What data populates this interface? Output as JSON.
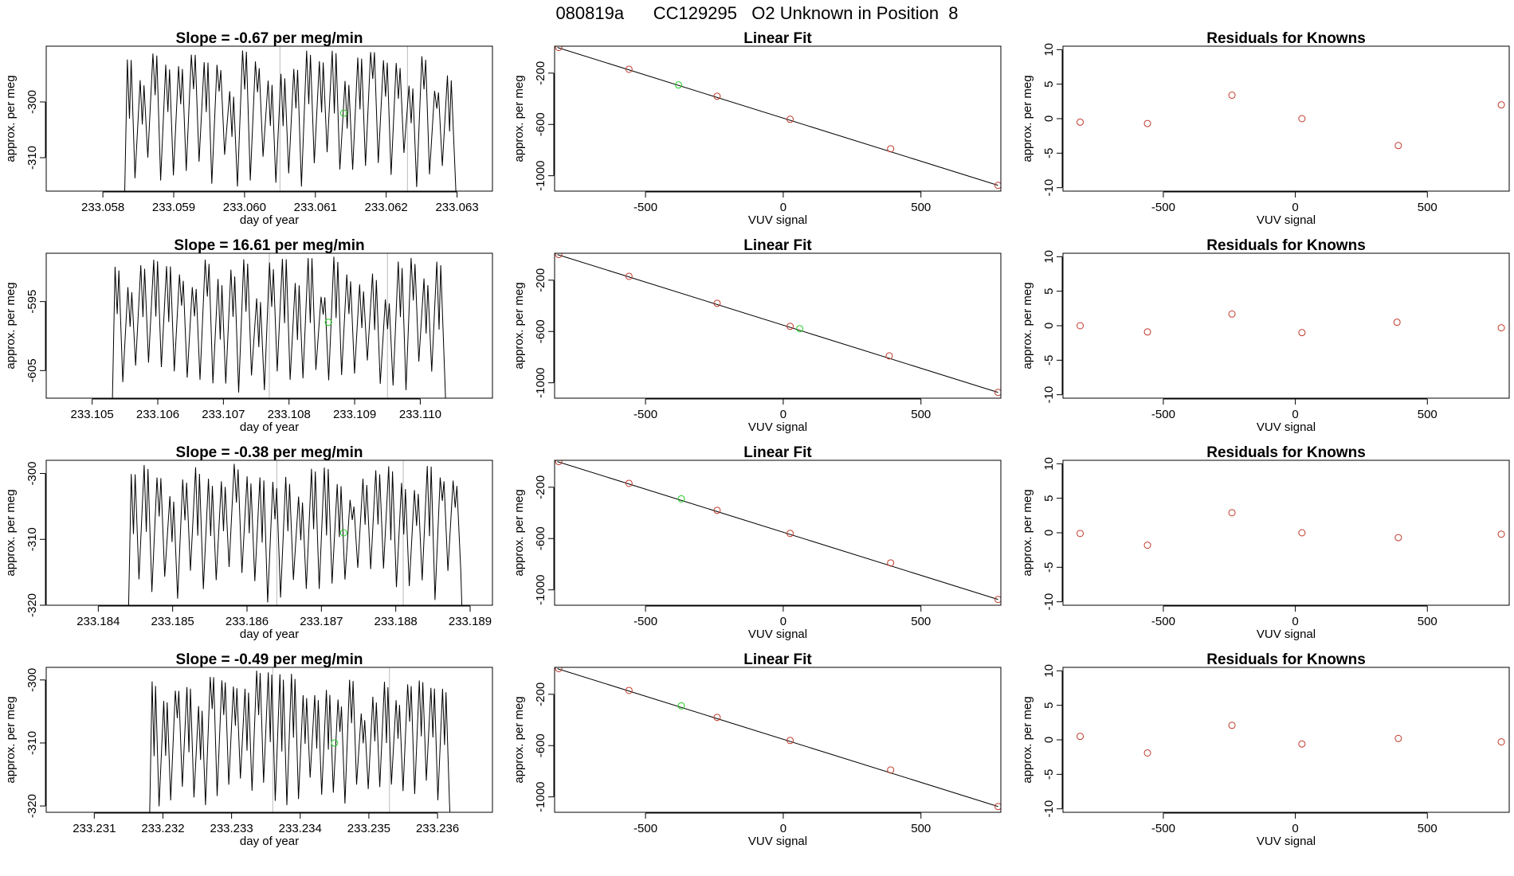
{
  "figure_title": "080819a      CC129295   O2 Unknown in Position  8",
  "colors": {
    "line": "#000000",
    "known_point": "#c0392b",
    "unknown_point": "#22cc22",
    "frame": "#000000",
    "divider": "#bbbbbb"
  },
  "chart_data": [
    {
      "type": "line",
      "panel": "timeseries",
      "row": 1,
      "title": "Slope =  -0.67  per meg/min",
      "xlabel": "day of year",
      "ylabel": "approx. per meg",
      "xlim": [
        233.0572,
        233.0635
      ],
      "ylim": [
        -316,
        -290
      ],
      "xticks": [
        233.058,
        233.059,
        233.06,
        233.061,
        233.062,
        233.063
      ],
      "xtick_labels": [
        "233.058",
        "233.059",
        "233.060",
        "233.061",
        "233.062",
        "233.063"
      ],
      "yticks": [
        -300,
        -310
      ],
      "ytick_labels": [
        "-300",
        "-310"
      ],
      "series_start": 233.0583,
      "series_end": 233.063,
      "seed": 11,
      "dividers": [
        233.0605,
        233.0623
      ],
      "unknown_point": {
        "x": 233.0614,
        "y": -302
      }
    },
    {
      "type": "scatter",
      "panel": "fit",
      "row": 1,
      "title": "Linear Fit",
      "xlabel": "VUV signal",
      "ylabel": "approx. per meg",
      "xlim": [
        -830,
        790
      ],
      "ylim": [
        -1120,
        10
      ],
      "xticks": [
        -500,
        0,
        500
      ],
      "xtick_labels": [
        "-500",
        "0",
        "500"
      ],
      "yticks": [
        -200,
        -600,
        -1000
      ],
      "ytick_labels": [
        "-200",
        "-600",
        "-1000"
      ],
      "line": {
        "x1": -820,
        "y1": 0,
        "x2": 780,
        "y2": -1075
      },
      "known_points": {
        "x": [
          -815,
          -560,
          -240,
          25,
          390,
          780
        ],
        "y": [
          0,
          -170,
          -380,
          -560,
          -790,
          -1075
        ]
      },
      "unknown_point": {
        "x": -380,
        "y": -292
      }
    },
    {
      "type": "scatter",
      "panel": "residuals",
      "row": 1,
      "title": "Residuals for Knowns",
      "xlabel": "VUV signal",
      "ylabel": "approx. per meg",
      "xlim": [
        -880,
        810
      ],
      "ylim": [
        -10.5,
        10.5
      ],
      "xticks": [
        -500,
        0,
        500
      ],
      "xtick_labels": [
        "-500",
        "0",
        "500"
      ],
      "yticks": [
        10,
        5,
        0,
        -5,
        -10
      ],
      "ytick_labels": [
        "10",
        "5",
        "0",
        "-5",
        "-10"
      ],
      "points": {
        "x": [
          -815,
          -560,
          -240,
          25,
          390,
          780
        ],
        "y": [
          -0.5,
          -0.7,
          3.4,
          0.0,
          -3.9,
          2.0
        ]
      }
    },
    {
      "type": "line",
      "panel": "timeseries",
      "row": 2,
      "title": "Slope =  16.61  per meg/min",
      "xlabel": "day of year",
      "ylabel": "approx. per meg",
      "xlim": [
        233.1043,
        233.1111
      ],
      "ylim": [
        -609,
        -588
      ],
      "xticks": [
        233.105,
        233.106,
        233.107,
        233.108,
        233.109,
        233.11
      ],
      "xtick_labels": [
        "233.105",
        "233.106",
        "233.107",
        "233.108",
        "233.109",
        "233.110"
      ],
      "yticks": [
        -595,
        -605
      ],
      "ytick_labels": [
        "-595",
        "-605"
      ],
      "series_start": 233.1053,
      "series_end": 233.1104,
      "seed": 23,
      "dividers": [
        233.1077,
        233.1095
      ],
      "unknown_point": {
        "x": 233.1086,
        "y": -598
      }
    },
    {
      "type": "scatter",
      "panel": "fit",
      "row": 2,
      "title": "Linear Fit",
      "xlabel": "VUV signal",
      "ylabel": "approx. per meg",
      "xlim": [
        -830,
        790
      ],
      "ylim": [
        -1120,
        10
      ],
      "xticks": [
        -500,
        0,
        500
      ],
      "xtick_labels": [
        "-500",
        "0",
        "500"
      ],
      "yticks": [
        -200,
        -600,
        -1000
      ],
      "ytick_labels": [
        "-200",
        "-600",
        "-1000"
      ],
      "line": {
        "x1": -820,
        "y1": 0,
        "x2": 780,
        "y2": -1075
      },
      "known_points": {
        "x": [
          -815,
          -560,
          -240,
          25,
          385,
          780
        ],
        "y": [
          0,
          -170,
          -380,
          -560,
          -790,
          -1075
        ]
      },
      "unknown_point": {
        "x": 60,
        "y": -578
      }
    },
    {
      "type": "scatter",
      "panel": "residuals",
      "row": 2,
      "title": "Residuals for Knowns",
      "xlabel": "VUV signal",
      "ylabel": "approx. per meg",
      "xlim": [
        -880,
        810
      ],
      "ylim": [
        -10.5,
        10.5
      ],
      "xticks": [
        -500,
        0,
        500
      ],
      "xtick_labels": [
        "-500",
        "0",
        "500"
      ],
      "yticks": [
        10,
        5,
        0,
        -5,
        -10
      ],
      "ytick_labels": [
        "10",
        "5",
        "0",
        "-5",
        "-10"
      ],
      "points": {
        "x": [
          -815,
          -560,
          -240,
          25,
          385,
          780
        ],
        "y": [
          0.0,
          -0.9,
          1.7,
          -1.0,
          0.5,
          -0.3
        ]
      }
    },
    {
      "type": "line",
      "panel": "timeseries",
      "row": 3,
      "title": "Slope =  -0.38  per meg/min",
      "xlabel": "day of year",
      "ylabel": "approx. per meg",
      "xlim": [
        233.1833,
        233.1893
      ],
      "ylim": [
        -320,
        -298
      ],
      "xticks": [
        233.184,
        233.185,
        233.186,
        233.187,
        233.188,
        233.189
      ],
      "xtick_labels": [
        "233.184",
        "233.185",
        "233.186",
        "233.187",
        "233.188",
        "233.189"
      ],
      "yticks": [
        -300,
        -310,
        -320
      ],
      "ytick_labels": [
        "-300",
        "-310",
        "-320"
      ],
      "series_start": 233.1844,
      "series_end": 233.1889,
      "seed": 37,
      "dividers": [
        233.1864,
        233.1881
      ],
      "unknown_point": {
        "x": 233.1873,
        "y": -309
      }
    },
    {
      "type": "scatter",
      "panel": "fit",
      "row": 3,
      "title": "Linear Fit",
      "xlabel": "VUV signal",
      "ylabel": "approx. per meg",
      "xlim": [
        -830,
        790
      ],
      "ylim": [
        -1120,
        10
      ],
      "xticks": [
        -500,
        0,
        500
      ],
      "xtick_labels": [
        "-500",
        "0",
        "500"
      ],
      "yticks": [
        -200,
        -600,
        -1000
      ],
      "ytick_labels": [
        "-200",
        "-600",
        "-1000"
      ],
      "line": {
        "x1": -820,
        "y1": 0,
        "x2": 780,
        "y2": -1075
      },
      "known_points": {
        "x": [
          -815,
          -560,
          -240,
          25,
          390,
          780
        ],
        "y": [
          0,
          -170,
          -380,
          -560,
          -790,
          -1075
        ]
      },
      "unknown_point": {
        "x": -370,
        "y": -290
      }
    },
    {
      "type": "scatter",
      "panel": "residuals",
      "row": 3,
      "title": "Residuals for Knowns",
      "xlabel": "VUV signal",
      "ylabel": "approx. per meg",
      "xlim": [
        -880,
        810
      ],
      "ylim": [
        -10.5,
        10.5
      ],
      "xticks": [
        -500,
        0,
        500
      ],
      "xtick_labels": [
        "-500",
        "0",
        "500"
      ],
      "yticks": [
        10,
        5,
        0,
        -5,
        -10
      ],
      "ytick_labels": [
        "10",
        "5",
        "0",
        "-5",
        "-10"
      ],
      "points": {
        "x": [
          -815,
          -560,
          -240,
          25,
          390,
          780
        ],
        "y": [
          -0.1,
          -1.8,
          2.9,
          0.0,
          -0.7,
          -0.2
        ]
      }
    },
    {
      "type": "line",
      "panel": "timeseries",
      "row": 4,
      "title": "Slope =  -0.49  per meg/min",
      "xlabel": "day of year",
      "ylabel": "approx. per meg",
      "xlim": [
        233.2303,
        233.2368
      ],
      "ylim": [
        -321,
        -298
      ],
      "xticks": [
        233.231,
        233.232,
        233.233,
        233.234,
        233.235,
        233.236
      ],
      "xtick_labels": [
        "233.231",
        "233.232",
        "233.233",
        "233.234",
        "233.235",
        "233.236"
      ],
      "yticks": [
        -300,
        -310,
        -320
      ],
      "ytick_labels": [
        "-300",
        "-310",
        "-320"
      ],
      "series_start": 233.2318,
      "series_end": 233.2362,
      "seed": 53,
      "dividers": [
        233.2336,
        233.2353
      ],
      "unknown_point": {
        "x": 233.2345,
        "y": -310
      }
    },
    {
      "type": "scatter",
      "panel": "fit",
      "row": 4,
      "title": "Linear Fit",
      "xlabel": "VUV signal",
      "ylabel": "approx. per meg",
      "xlim": [
        -830,
        790
      ],
      "ylim": [
        -1120,
        10
      ],
      "xticks": [
        -500,
        0,
        500
      ],
      "xtick_labels": [
        "-500",
        "0",
        "500"
      ],
      "yticks": [
        -200,
        -600,
        -1000
      ],
      "ytick_labels": [
        "-200",
        "-600",
        "-1000"
      ],
      "line": {
        "x1": -820,
        "y1": 0,
        "x2": 780,
        "y2": -1075
      },
      "known_points": {
        "x": [
          -815,
          -560,
          -240,
          25,
          390,
          780
        ],
        "y": [
          0,
          -170,
          -380,
          -560,
          -790,
          -1075
        ]
      },
      "unknown_point": {
        "x": -370,
        "y": -290
      }
    },
    {
      "type": "scatter",
      "panel": "residuals",
      "row": 4,
      "title": "Residuals for Knowns",
      "xlabel": "VUV signal",
      "ylabel": "approx. per meg",
      "xlim": [
        -880,
        810
      ],
      "ylim": [
        -10.5,
        10.5
      ],
      "xticks": [
        -500,
        0,
        500
      ],
      "xtick_labels": [
        "-500",
        "0",
        "500"
      ],
      "yticks": [
        10,
        5,
        0,
        -5,
        -10
      ],
      "ytick_labels": [
        "10",
        "5",
        "0",
        "-5",
        "-10"
      ],
      "points": {
        "x": [
          -815,
          -560,
          -240,
          25,
          390,
          780
        ],
        "y": [
          0.5,
          -1.9,
          2.1,
          -0.6,
          0.2,
          -0.3
        ]
      }
    }
  ]
}
